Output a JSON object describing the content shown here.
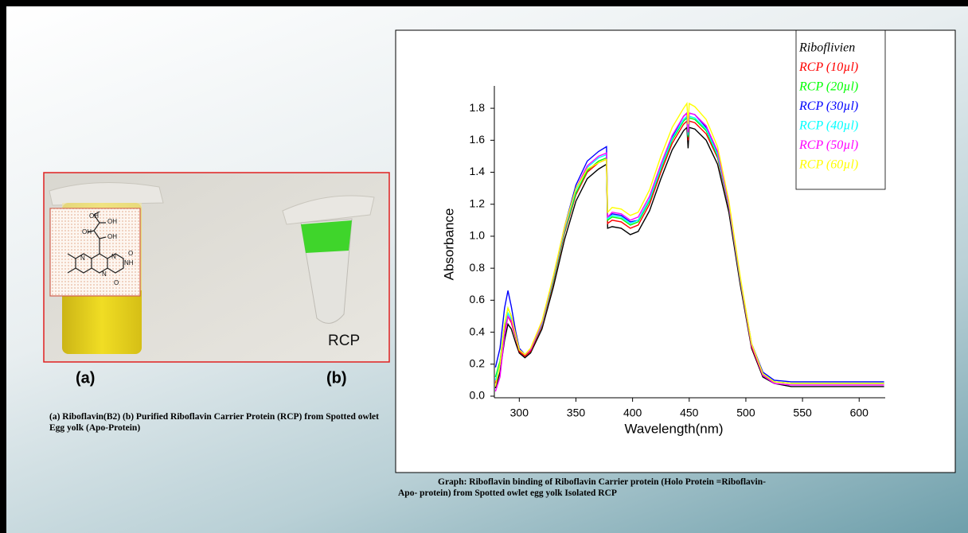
{
  "chart_data": {
    "type": "line",
    "x_label": "Wavelength(nm)",
    "y_label": "Absorbance",
    "x": [
      279,
      283,
      287,
      290,
      293,
      297,
      300,
      305,
      310,
      320,
      330,
      340,
      350,
      360,
      370,
      377,
      378,
      382,
      390,
      398,
      405,
      415,
      425,
      435,
      445,
      448,
      449,
      450,
      455,
      465,
      475,
      485,
      495,
      505,
      515,
      525,
      540,
      560,
      580,
      600,
      622
    ],
    "series": [
      {
        "name": "Riboflivien",
        "color": "#000000",
        "values": [
          0.05,
          0.15,
          0.35,
          0.45,
          0.42,
          0.33,
          0.27,
          0.24,
          0.27,
          0.42,
          0.68,
          0.98,
          1.22,
          1.36,
          1.42,
          1.45,
          1.05,
          1.06,
          1.05,
          1.01,
          1.03,
          1.16,
          1.36,
          1.54,
          1.66,
          1.68,
          1.55,
          1.68,
          1.67,
          1.6,
          1.45,
          1.15,
          0.7,
          0.3,
          0.12,
          0.08,
          0.06,
          0.06,
          0.06,
          0.06,
          0.06
        ]
      },
      {
        "name": "RCP (10µl)",
        "color": "#ff0000",
        "values": [
          0.08,
          0.2,
          0.42,
          0.5,
          0.46,
          0.36,
          0.28,
          0.25,
          0.28,
          0.44,
          0.71,
          1.02,
          1.26,
          1.4,
          1.46,
          1.48,
          1.08,
          1.1,
          1.09,
          1.05,
          1.07,
          1.2,
          1.4,
          1.58,
          1.7,
          1.72,
          1.6,
          1.72,
          1.71,
          1.64,
          1.49,
          1.18,
          0.72,
          0.31,
          0.13,
          0.09,
          0.08,
          0.08,
          0.08,
          0.08,
          0.08
        ]
      },
      {
        "name": "RCP (20µl)",
        "color": "#00ff00",
        "values": [
          0.12,
          0.22,
          0.45,
          0.55,
          0.5,
          0.38,
          0.29,
          0.26,
          0.29,
          0.45,
          0.72,
          1.03,
          1.27,
          1.41,
          1.47,
          1.49,
          1.1,
          1.12,
          1.11,
          1.07,
          1.09,
          1.22,
          1.42,
          1.6,
          1.72,
          1.74,
          1.62,
          1.74,
          1.73,
          1.66,
          1.5,
          1.19,
          0.73,
          0.32,
          0.14,
          0.09,
          0.08,
          0.08,
          0.08,
          0.08,
          0.08
        ]
      },
      {
        "name": "RCP (30µl)",
        "color": "#0000ff",
        "values": [
          0.18,
          0.3,
          0.55,
          0.66,
          0.56,
          0.4,
          0.3,
          0.26,
          0.29,
          0.46,
          0.74,
          1.06,
          1.32,
          1.47,
          1.53,
          1.56,
          1.12,
          1.14,
          1.13,
          1.09,
          1.1,
          1.23,
          1.43,
          1.62,
          1.75,
          1.77,
          1.65,
          1.77,
          1.76,
          1.68,
          1.52,
          1.2,
          0.74,
          0.33,
          0.15,
          0.1,
          0.09,
          0.09,
          0.09,
          0.09,
          0.09
        ]
      },
      {
        "name": "RCP (40µl)",
        "color": "#00ffff",
        "values": [
          0.1,
          0.2,
          0.44,
          0.52,
          0.48,
          0.37,
          0.29,
          0.26,
          0.29,
          0.45,
          0.73,
          1.04,
          1.29,
          1.43,
          1.49,
          1.51,
          1.11,
          1.13,
          1.12,
          1.08,
          1.1,
          1.23,
          1.43,
          1.61,
          1.73,
          1.75,
          1.63,
          1.75,
          1.74,
          1.67,
          1.51,
          1.19,
          0.73,
          0.32,
          0.14,
          0.09,
          0.08,
          0.08,
          0.08,
          0.08,
          0.08
        ]
      },
      {
        "name": "RCP (50µl)",
        "color": "#ff00ff",
        "values": [
          0.03,
          0.12,
          0.38,
          0.5,
          0.47,
          0.37,
          0.29,
          0.26,
          0.29,
          0.46,
          0.74,
          1.05,
          1.3,
          1.44,
          1.5,
          1.52,
          1.12,
          1.15,
          1.14,
          1.1,
          1.12,
          1.25,
          1.45,
          1.63,
          1.75,
          1.77,
          1.65,
          1.77,
          1.76,
          1.69,
          1.53,
          1.2,
          0.74,
          0.32,
          0.13,
          0.08,
          0.07,
          0.07,
          0.07,
          0.07,
          0.07
        ]
      },
      {
        "name": "RCP (60µl)",
        "color": "#ffff00",
        "values": [
          0.06,
          0.2,
          0.45,
          0.55,
          0.5,
          0.38,
          0.29,
          0.26,
          0.3,
          0.47,
          0.75,
          1.06,
          1.3,
          1.42,
          1.46,
          1.48,
          1.15,
          1.18,
          1.17,
          1.13,
          1.15,
          1.29,
          1.5,
          1.68,
          1.8,
          1.83,
          1.7,
          1.83,
          1.81,
          1.73,
          1.56,
          1.22,
          0.75,
          0.33,
          0.14,
          0.09,
          0.08,
          0.08,
          0.08,
          0.08,
          0.08
        ]
      }
    ],
    "xlim": [
      278,
      623
    ],
    "ylim": [
      0,
      1.9
    ],
    "xticks": [
      300,
      350,
      400,
      450,
      500,
      550,
      600
    ],
    "yticks": [
      {
        "value": 0,
        "label": "0.0"
      },
      0.2,
      0.4,
      0.6,
      0.8,
      {
        "value": 1,
        "label": "1.0"
      },
      1.2,
      1.4,
      1.6,
      1.8
    ],
    "legend": "upper right",
    "grid": false,
    "caption": "Graph: Riboflavin binding of Riboflavin Carrier protein (Holo Protein =Riboflavin-Apo- protein) from Spotted owlet egg yolk Isolated RCP"
  },
  "photo": {
    "tube_label": "RCP",
    "panel_a": "(a)",
    "panel_b": "(b)",
    "structure_labels": [
      "OH",
      "OH",
      "OH",
      "OH",
      "N",
      "N",
      "N",
      "NH",
      "O",
      "O"
    ],
    "caption": "(a) Riboflavin(B2) (b) Purified Riboflavin Carrier Protein (RCP) from Spotted owlet Egg yolk (Apo-Protein)"
  }
}
